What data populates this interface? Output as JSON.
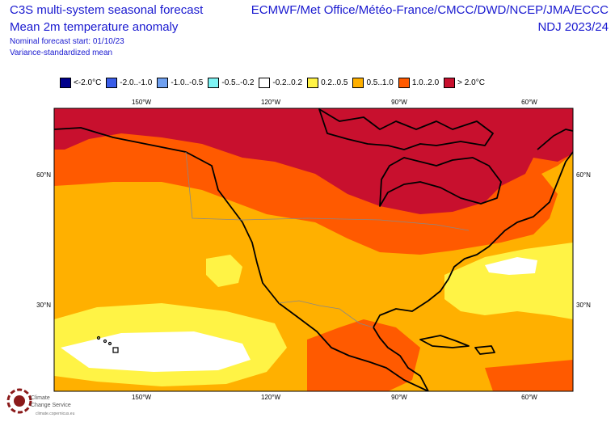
{
  "header": {
    "title_line1": "C3S multi-system seasonal forecast",
    "title_line2": "Mean 2m temperature anomaly",
    "line3": "Nominal forecast start: 01/10/23",
    "line4": "Variance-standardized mean",
    "systems": "ECMWF/Met Office/Météo-France/CMCC/DWD/NCEP/JMA/ECCC",
    "period": "NDJ 2023/24"
  },
  "legend": [
    {
      "label": "<-2.0°C",
      "color": "#00008b"
    },
    {
      "label": "-2.0..-1.0",
      "color": "#3a5de8"
    },
    {
      "label": "-1.0..-0.5",
      "color": "#6fa0f0"
    },
    {
      "label": "-0.5..-0.2",
      "color": "#7ff5f5"
    },
    {
      "label": "-0.2..0.2",
      "color": "#ffffff"
    },
    {
      "label": "0.2..0.5",
      "color": "#fff345"
    },
    {
      "label": "0.5..1.0",
      "color": "#ffb000"
    },
    {
      "label": "1.0..2.0",
      "color": "#ff5a00"
    },
    {
      "label": "> 2.0°C",
      "color": "#c8102e"
    }
  ],
  "axes": {
    "lon_top": [
      "150°W",
      "120°W",
      "90°W",
      "60°W"
    ],
    "lon_bottom": [
      "150°W",
      "120°W",
      "90°W",
      "60°W"
    ],
    "lat_left": [
      "60°N",
      "30°N"
    ],
    "lat_right": [
      "60°N",
      "30°N"
    ]
  },
  "logo": {
    "name_line1": "Climate",
    "name_line2": "Change Service",
    "url": "climate.copernicus.eu"
  }
}
